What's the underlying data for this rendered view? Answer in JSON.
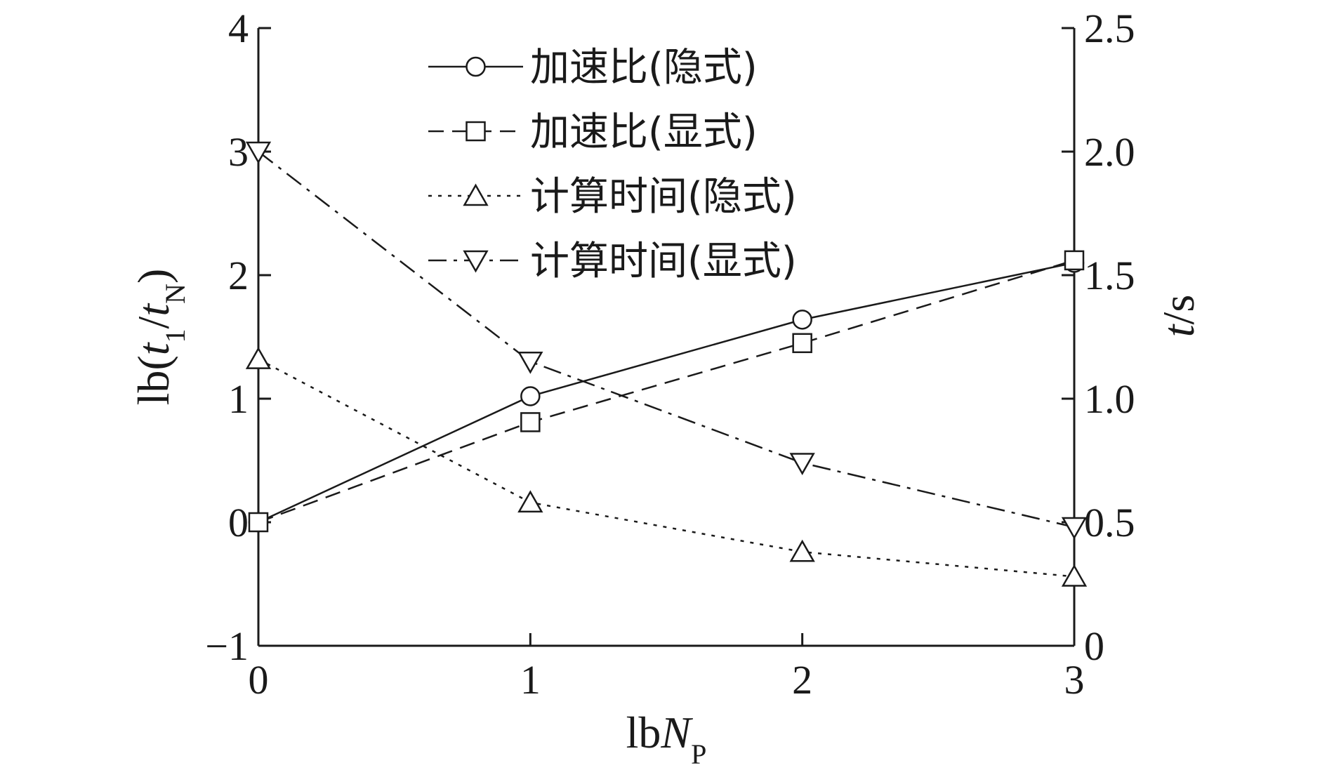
{
  "chart_data": {
    "type": "line",
    "xlabel": "lbN_P",
    "ylabel_left": "lb(t_1/t_N)",
    "ylabel_right": "t/s",
    "x": [
      0,
      1,
      2,
      3
    ],
    "xlim": [
      0,
      3
    ],
    "ylim_left": [
      -1,
      4
    ],
    "ylim_right": [
      0,
      2.5
    ],
    "x_ticks": [
      "0",
      "1",
      "2",
      "3"
    ],
    "y_left_ticks": [
      "−1",
      "0",
      "1",
      "2",
      "3",
      "4"
    ],
    "y_right_ticks": [
      "0",
      "0.5",
      "1.0",
      "1.5",
      "2.0",
      "2.5"
    ],
    "grid": false,
    "legend_position": "top-center",
    "series": [
      {
        "name": "加速比(隐式)",
        "axis": "left",
        "marker": "circle",
        "dash": "solid",
        "values": [
          0.0,
          1.02,
          1.64,
          2.1
        ]
      },
      {
        "name": "加速比(显式)",
        "axis": "left",
        "marker": "square",
        "dash": "dashed",
        "values": [
          0.0,
          0.81,
          1.45,
          2.12
        ]
      },
      {
        "name": "计算时间(隐式)",
        "axis": "right",
        "marker": "triangle-up",
        "dash": "dotted",
        "values": [
          1.16,
          0.58,
          0.38,
          0.28
        ]
      },
      {
        "name": "计算时间(显式)",
        "axis": "right",
        "marker": "triangle-down",
        "dash": "dashdot",
        "values": [
          2.0,
          1.15,
          0.74,
          0.48
        ]
      }
    ]
  }
}
